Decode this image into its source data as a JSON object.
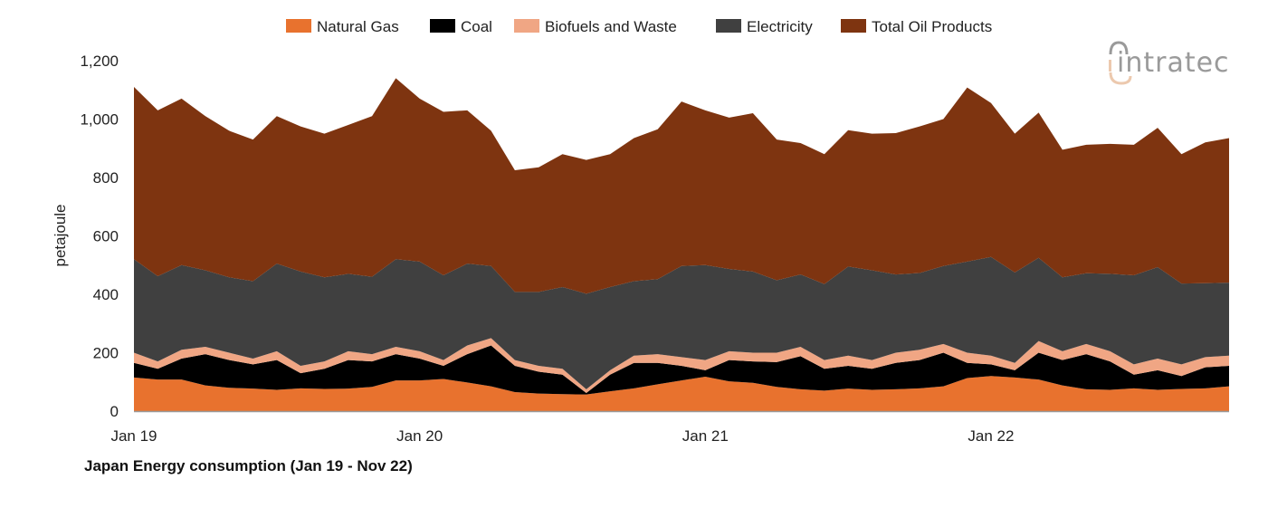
{
  "chart_data": {
    "type": "area",
    "stacked": true,
    "title": "Japan Energy consumption (Jan 19 - Nov 22)",
    "xlabel": "",
    "ylabel": "petajoule",
    "ylim": [
      0,
      1200
    ],
    "yticks": [
      "0",
      "200",
      "400",
      "600",
      "800",
      "1,000",
      "1,200"
    ],
    "xticks": [
      "Jan 19",
      "Jan 20",
      "Jan 21",
      "Jan 22"
    ],
    "grid": false,
    "legend_position": "top",
    "categories": [
      "Jan 19",
      "Feb 19",
      "Mar 19",
      "Apr 19",
      "May 19",
      "Jun 19",
      "Jul 19",
      "Aug 19",
      "Sep 19",
      "Oct 19",
      "Nov 19",
      "Dec 19",
      "Jan 20",
      "Feb 20",
      "Mar 20",
      "Apr 20",
      "May 20",
      "Jun 20",
      "Jul 20",
      "Aug 20",
      "Sep 20",
      "Oct 20",
      "Nov 20",
      "Dec 20",
      "Jan 21",
      "Feb 21",
      "Mar 21",
      "Apr 21",
      "May 21",
      "Jun 21",
      "Jul 21",
      "Aug 21",
      "Sep 21",
      "Oct 21",
      "Nov 21",
      "Dec 21",
      "Jan 22",
      "Feb 22",
      "Mar 22",
      "Apr 22",
      "May 22",
      "Jun 22",
      "Jul 22",
      "Aug 22",
      "Sep 22",
      "Oct 22",
      "Nov 22"
    ],
    "series": [
      {
        "name": "Natural Gas",
        "color": "#E8722E",
        "values": [
          115,
          108,
          108,
          88,
          80,
          77,
          73,
          78,
          76,
          77,
          83,
          105,
          105,
          110,
          98,
          85,
          65,
          60,
          58,
          57,
          68,
          78,
          92,
          105,
          118,
          102,
          97,
          83,
          75,
          70,
          77,
          73,
          75,
          78,
          85,
          113,
          120,
          115,
          108,
          88,
          75,
          73,
          78,
          73,
          76,
          78,
          85
        ]
      },
      {
        "name": "Coal",
        "color": "#000000",
        "values": [
          50,
          37,
          72,
          107,
          95,
          83,
          102,
          52,
          69,
          98,
          87,
          90,
          75,
          45,
          97,
          140,
          90,
          75,
          67,
          5,
          57,
          87,
          73,
          50,
          22,
          73,
          73,
          85,
          113,
          75,
          78,
          72,
          90,
          97,
          115,
          52,
          40,
          25,
          92,
          87,
          120,
          97,
          47,
          67,
          44,
          72,
          70
        ]
      },
      {
        "name": "Biofuels and Waste",
        "color": "#F0A684",
        "values": [
          35,
          25,
          30,
          25,
          25,
          20,
          30,
          25,
          25,
          30,
          25,
          25,
          25,
          20,
          30,
          25,
          20,
          20,
          20,
          13,
          15,
          25,
          30,
          30,
          35,
          30,
          30,
          32,
          32,
          30,
          35,
          30,
          35,
          35,
          30,
          35,
          30,
          25,
          40,
          30,
          35,
          35,
          35,
          40,
          40,
          35,
          35
        ]
      },
      {
        "name": "Electricity",
        "color": "#404040",
        "values": [
          320,
          292,
          290,
          262,
          258,
          265,
          300,
          323,
          288,
          265,
          265,
          300,
          307,
          290,
          280,
          247,
          233,
          253,
          280,
          327,
          285,
          255,
          257,
          312,
          325,
          282,
          278,
          248,
          248,
          260,
          305,
          307,
          268,
          263,
          267,
          312,
          338,
          310,
          285,
          253,
          242,
          265,
          305,
          313,
          277,
          253,
          250
        ]
      },
      {
        "name": "Total Oil Products",
        "color": "#7E3410",
        "values": [
          590,
          568,
          570,
          528,
          502,
          485,
          505,
          497,
          492,
          510,
          550,
          620,
          558,
          560,
          525,
          463,
          417,
          427,
          455,
          458,
          455,
          490,
          513,
          563,
          530,
          518,
          542,
          482,
          450,
          445,
          467,
          468,
          484,
          502,
          503,
          596,
          527,
          475,
          497,
          437,
          440,
          445,
          447,
          477,
          443,
          482,
          495
        ]
      }
    ]
  },
  "logo": {
    "text": "intratec"
  }
}
